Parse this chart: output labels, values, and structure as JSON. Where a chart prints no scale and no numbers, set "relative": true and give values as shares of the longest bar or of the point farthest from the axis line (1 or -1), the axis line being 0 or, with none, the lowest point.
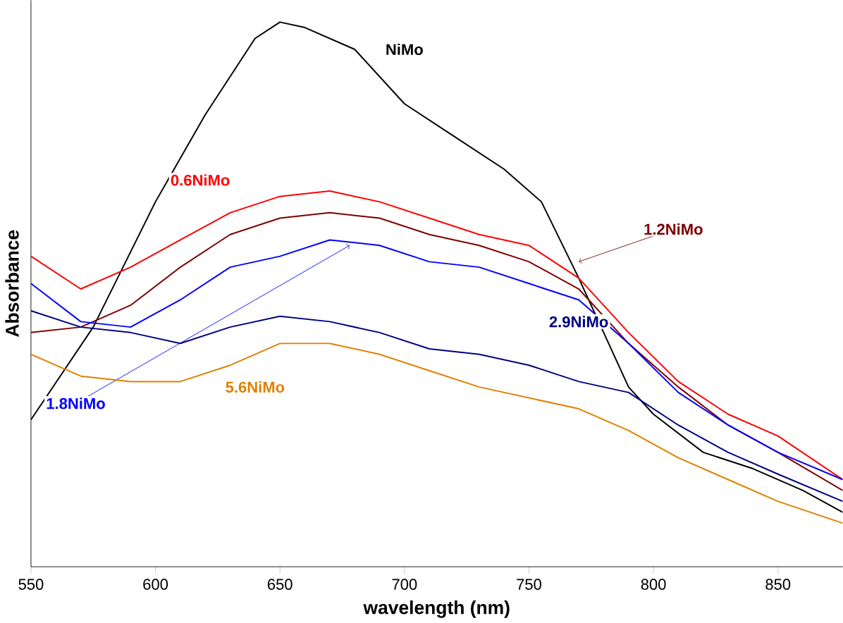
{
  "chart_data": {
    "type": "line",
    "relative": true,
    "xlabel": "wavelength (nm)",
    "ylabel": "Absorbance",
    "xlim": [
      550,
      876
    ],
    "xticks": [
      550,
      600,
      650,
      700,
      750,
      800,
      850
    ],
    "x": [
      550,
      570,
      590,
      610,
      630,
      650,
      670,
      690,
      710,
      730,
      750,
      770,
      790,
      810,
      830,
      850,
      876
    ],
    "series": [
      {
        "name": "NiMo",
        "color": "#000000",
        "x": [
          550,
          575,
          600,
          620,
          640,
          650,
          660,
          680,
          700,
          720,
          740,
          755,
          770,
          780,
          790,
          800,
          820,
          840,
          860,
          876
        ],
        "values": [
          0.27,
          0.44,
          0.67,
          0.83,
          0.97,
          1.0,
          0.99,
          0.95,
          0.85,
          0.79,
          0.73,
          0.67,
          0.53,
          0.43,
          0.33,
          0.28,
          0.21,
          0.18,
          0.14,
          0.1
        ]
      },
      {
        "name": "0.6NiMo",
        "color": "#ff0000",
        "values": [
          0.57,
          0.51,
          0.55,
          0.6,
          0.65,
          0.68,
          0.69,
          0.67,
          0.64,
          0.61,
          0.59,
          0.53,
          0.43,
          0.34,
          0.28,
          0.24,
          0.16
        ]
      },
      {
        "name": "1.2NiMo",
        "color": "#7f0000",
        "values": [
          0.43,
          0.44,
          0.48,
          0.55,
          0.61,
          0.64,
          0.65,
          0.64,
          0.61,
          0.59,
          0.56,
          0.51,
          0.41,
          0.33,
          0.26,
          0.21,
          0.14
        ]
      },
      {
        "name": "1.8NiMo",
        "color": "#0000ff",
        "values": [
          0.52,
          0.45,
          0.44,
          0.49,
          0.55,
          0.57,
          0.6,
          0.59,
          0.56,
          0.55,
          0.52,
          0.49,
          0.41,
          0.32,
          0.26,
          0.21,
          0.16
        ]
      },
      {
        "name": "2.9NiMo",
        "color": "#00007f",
        "values": [
          0.47,
          0.44,
          0.43,
          0.41,
          0.44,
          0.46,
          0.45,
          0.43,
          0.4,
          0.39,
          0.37,
          0.34,
          0.32,
          0.26,
          0.21,
          0.17,
          0.12
        ]
      },
      {
        "name": "5.6NiMo",
        "color": "#e08000",
        "values": [
          0.39,
          0.35,
          0.34,
          0.34,
          0.37,
          0.41,
          0.41,
          0.39,
          0.36,
          0.33,
          0.31,
          0.29,
          0.25,
          0.2,
          0.16,
          0.12,
          0.08
        ]
      }
    ]
  }
}
